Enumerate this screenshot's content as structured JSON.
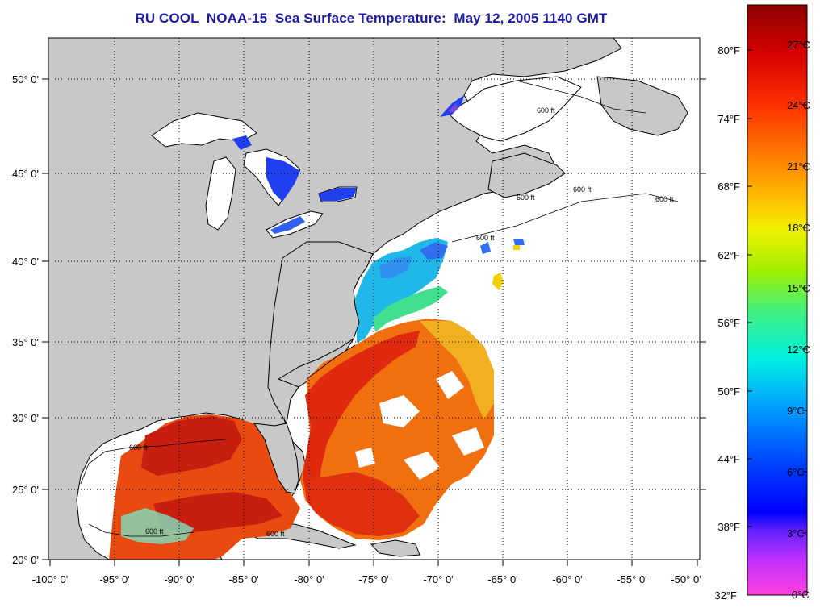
{
  "title": "RU COOL  NOAA-15  Sea Surface Temperature:  May 12, 2005 1140 GMT",
  "lat_labels": [
    "50° 0'",
    "45° 0'",
    "40° 0'",
    "35° 0'",
    "30° 0'",
    "25° 0'",
    "20° 0'"
  ],
  "lon_labels": [
    "-100° 0'",
    "-95° 0'",
    "-90° 0'",
    "-85° 0'",
    "-80° 0'",
    "-75° 0'",
    "-70° 0'",
    "-65° 0'",
    "-60° 0'",
    "-55° 0'",
    "-50° 0'"
  ],
  "fahrenheit_labels": [
    "80°F",
    "74°F",
    "68°F",
    "62°F",
    "56°F",
    "50°F",
    "44°F",
    "38°F",
    "32°F"
  ],
  "celsius_labels": [
    "27°C",
    "24°C",
    "21°C",
    "18°C",
    "15°C",
    "12°C",
    "9°C",
    "6°C",
    "3°C",
    "0°C"
  ],
  "contour_label": "600 ft",
  "colors": {
    "land": "#c8c8c8",
    "ocean_nodata": "#ffffff",
    "title": "#1a1aa8",
    "gulf_stream_warm": "#e02a10",
    "warm_water": "#f07010",
    "cool_shelf": "#20b8e8",
    "cold_lakes": "#2040f0"
  },
  "colorbar": {
    "stops": [
      "#8b0000",
      "#d40000",
      "#ff3000",
      "#ff8000",
      "#ffc000",
      "#f0f000",
      "#a0f000",
      "#40f080",
      "#00f0e0",
      "#00a0ff",
      "#0040ff",
      "#0000ff",
      "#6020ff",
      "#c030ff",
      "#ff40e0"
    ]
  }
}
